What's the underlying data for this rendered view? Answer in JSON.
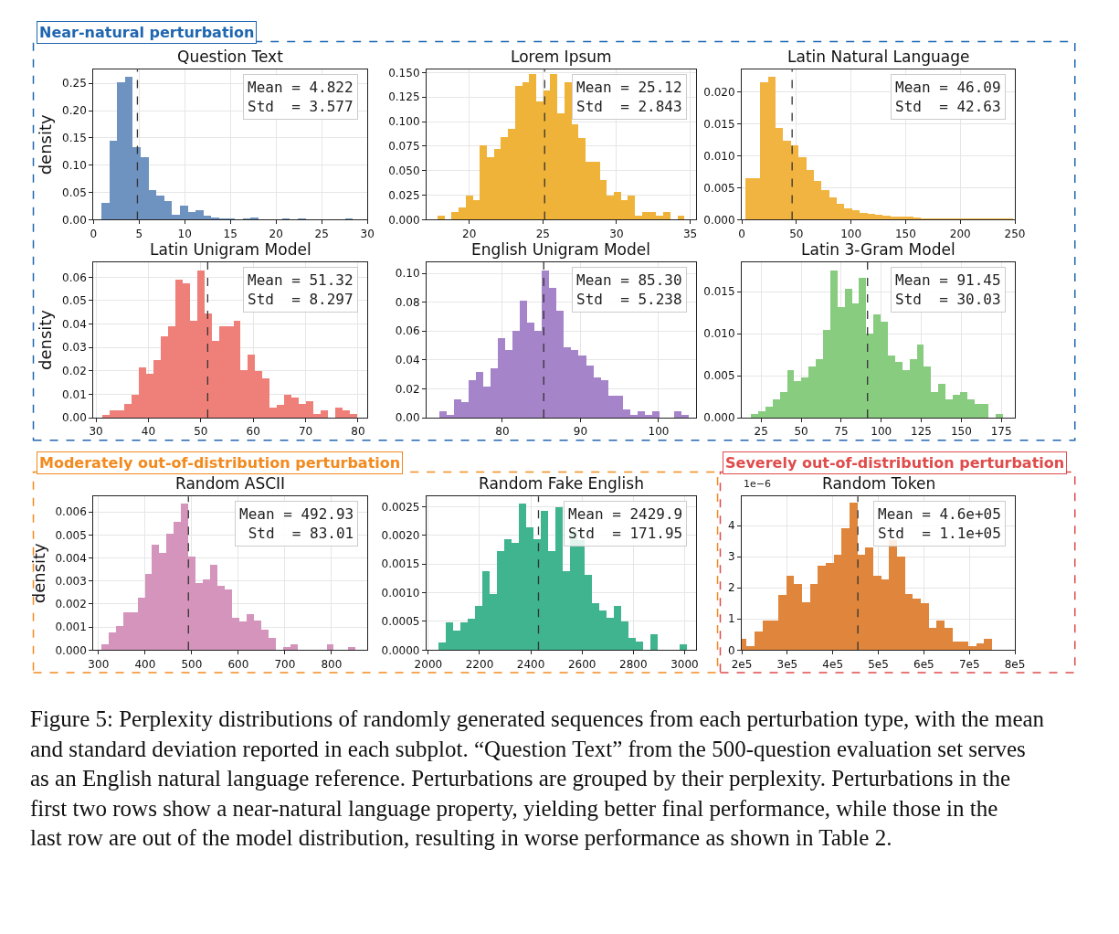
{
  "chart_data": [
    {
      "type": "histogram",
      "title": "Question Text",
      "ylabel": "density",
      "color": "#6f93c0",
      "grid": true,
      "bins": [
        0.9,
        1.76,
        2.62,
        3.48,
        4.34,
        5.2,
        6.06,
        6.92,
        7.78,
        8.64,
        9.5,
        10.36,
        11.22,
        12.08,
        12.94,
        13.8,
        14.66,
        15.52,
        16.38,
        17.24,
        18.1,
        18.96,
        19.82,
        20.68,
        21.54,
        22.4,
        23.26,
        24.12,
        24.98,
        25.84,
        26.7,
        27.56,
        28.42
      ],
      "values": [
        0.03,
        0.144,
        0.252,
        0.261,
        0.133,
        0.114,
        0.054,
        0.044,
        0.034,
        0.009,
        0.026,
        0.014,
        0.017,
        0.007,
        0.004,
        0.002,
        0.002,
        0,
        0.002,
        0.003,
        0,
        0,
        0,
        0.002,
        0,
        0.002,
        0,
        0,
        0,
        0,
        0,
        0.002
      ],
      "xlim": [
        0,
        30
      ],
      "xticks": [
        0,
        5,
        10,
        15,
        20,
        25,
        30
      ],
      "ylim": [
        0,
        0.275
      ],
      "yticks": [
        {
          "value": 0,
          "label": "0.00"
        },
        {
          "value": 0.05,
          "label": "0.05"
        },
        {
          "value": 0.1,
          "label": "0.10"
        },
        {
          "value": 0.15,
          "label": "0.15"
        },
        {
          "value": 0.2,
          "label": "0.20"
        },
        {
          "value": 0.25,
          "label": "0.25"
        }
      ],
      "ref_lines": [
        {
          "axis": "x",
          "value": 4.822,
          "color": "#333333",
          "line_style": "dashed"
        }
      ],
      "annotations": [
        "Mean = 4.822\nStd  = 3.577",
        "Near-natural perturbation"
      ]
    },
    {
      "type": "histogram",
      "title": "Lorem Ipsum",
      "color": "#efb339",
      "grid": true,
      "bins": [
        17.84,
        18.32,
        18.8,
        19.28,
        19.76,
        20.24,
        20.71,
        21.19,
        21.67,
        22.15,
        22.63,
        23.11,
        23.59,
        24.07,
        24.55,
        25.03,
        25.5,
        25.98,
        26.46,
        26.94,
        27.42,
        27.9,
        28.38,
        28.86,
        29.34,
        29.82,
        30.29,
        30.77,
        31.25,
        31.73,
        32.21,
        32.69,
        33.17,
        33.65,
        34.13,
        34.61
      ],
      "values": [
        0.004,
        0,
        0.008,
        0.012,
        0.024,
        0.02,
        0.076,
        0.064,
        0.072,
        0.084,
        0.092,
        0.136,
        0.14,
        0.148,
        0.12,
        0.132,
        0.148,
        0.108,
        0.14,
        0.097,
        0.083,
        0.059,
        0.059,
        0.04,
        0.024,
        0.028,
        0.02,
        0.024,
        0.004,
        0.008,
        0.008,
        0.004,
        0.008,
        0,
        0.004
      ],
      "xlim": [
        17.1,
        35.4
      ],
      "xticks": [
        20,
        25,
        30,
        35
      ],
      "ylim": [
        0,
        0.153
      ],
      "yticks": [
        {
          "value": 0,
          "label": "0.000"
        },
        {
          "value": 0.025,
          "label": "0.025"
        },
        {
          "value": 0.05,
          "label": "0.050"
        },
        {
          "value": 0.075,
          "label": "0.075"
        },
        {
          "value": 0.1,
          "label": "0.100"
        },
        {
          "value": 0.125,
          "label": "0.125"
        },
        {
          "value": 0.15,
          "label": "0.150"
        }
      ],
      "ref_lines": [
        {
          "axis": "x",
          "value": 25.12,
          "color": "#333333",
          "line_style": "dashed"
        }
      ],
      "annotations": [
        "Mean = 25.12\nStd  = 2.843"
      ]
    },
    {
      "type": "histogram",
      "title": "Latin Natural Language",
      "color": "#f2b441",
      "grid": true,
      "bins": [
        3,
        10,
        17,
        24,
        31,
        38,
        45,
        52,
        59,
        66,
        73,
        80,
        87,
        94,
        101,
        108,
        115,
        122,
        129,
        136,
        143,
        150,
        157,
        164,
        171,
        178,
        185,
        192,
        199,
        206,
        213,
        220,
        227,
        234,
        241,
        248
      ],
      "values": [
        0.0064,
        0.0065,
        0.0215,
        0.0223,
        0.0143,
        0.0123,
        0.0116,
        0.0097,
        0.0078,
        0.006,
        0.0046,
        0.0035,
        0.0024,
        0.0017,
        0.0014,
        0.001,
        0.0009,
        0.0007,
        0.0006,
        0.0005,
        0.0004,
        0.0004,
        0.0003,
        0.0002,
        0.0002,
        0.0002,
        0.0001,
        0.0001,
        0.0001,
        0.0001,
        0.0001,
        0.0001,
        0.0001,
        0.0001,
        0.0001
      ],
      "xlim": [
        0,
        250
      ],
      "xticks": [
        0,
        50,
        100,
        150,
        200,
        250
      ],
      "ylim": [
        0,
        0.0235
      ],
      "yticks": [
        {
          "value": 0,
          "label": "0.000"
        },
        {
          "value": 0.005,
          "label": "0.005"
        },
        {
          "value": 0.01,
          "label": "0.010"
        },
        {
          "value": 0.015,
          "label": "0.015"
        },
        {
          "value": 0.02,
          "label": "0.020"
        }
      ],
      "ref_lines": [
        {
          "axis": "x",
          "value": 46.09,
          "color": "#333333",
          "line_style": "dashed"
        }
      ],
      "annotations": [
        "Mean = 46.09\nStd  = 42.63"
      ]
    },
    {
      "type": "histogram",
      "title": "Latin Unigram Model",
      "ylabel": "density",
      "color": "#ef8079",
      "grid": true,
      "bins": [
        31.2,
        32.59,
        33.98,
        35.38,
        36.77,
        38.16,
        39.55,
        40.94,
        42.34,
        43.73,
        45.12,
        46.51,
        47.9,
        49.3,
        50.69,
        52.08,
        53.47,
        54.86,
        56.26,
        57.65,
        59.04,
        60.43,
        61.82,
        63.22,
        64.61,
        66.0,
        67.39,
        68.78,
        70.18,
        71.57,
        72.96,
        74.35,
        75.74,
        77.14,
        78.53,
        79.92
      ],
      "values": [
        0.0013,
        0.003,
        0.003,
        0.006,
        0.01,
        0.0216,
        0.0186,
        0.0246,
        0.0347,
        0.0389,
        0.0588,
        0.0575,
        0.0415,
        0.063,
        0.0444,
        0.0329,
        0.0389,
        0.0389,
        0.0415,
        0.0202,
        0.0271,
        0.0201,
        0.0167,
        0.0042,
        0.0057,
        0.01,
        0.0086,
        0.0058,
        0.0071,
        0.0016,
        0.003,
        0,
        0.0043,
        0.003,
        0.0015
      ],
      "xlim": [
        29.5,
        81.8
      ],
      "xticks": [
        30,
        40,
        50,
        60,
        70,
        80
      ],
      "ylim": [
        0,
        0.0664
      ],
      "yticks": [
        {
          "value": 0,
          "label": "0.00"
        },
        {
          "value": 0.01,
          "label": "0.01"
        },
        {
          "value": 0.02,
          "label": "0.02"
        },
        {
          "value": 0.03,
          "label": "0.03"
        },
        {
          "value": 0.04,
          "label": "0.04"
        },
        {
          "value": 0.05,
          "label": "0.05"
        },
        {
          "value": 0.06,
          "label": "0.06"
        }
      ],
      "ref_lines": [
        {
          "axis": "x",
          "value": 51.32,
          "color": "#333333",
          "line_style": "dashed"
        }
      ],
      "annotations": [
        "Mean = 51.32\nStd  = 8.297"
      ]
    },
    {
      "type": "histogram",
      "title": "English Unigram Model",
      "color": "#a584c9",
      "grid": true,
      "bins": [
        71.9,
        72.84,
        73.78,
        74.72,
        75.66,
        76.6,
        77.54,
        78.48,
        79.42,
        80.36,
        81.3,
        82.24,
        83.18,
        84.12,
        85.06,
        86.0,
        86.94,
        87.88,
        88.82,
        89.76,
        90.7,
        91.64,
        92.58,
        93.52,
        94.46,
        95.4,
        96.34,
        97.28,
        98.22,
        99.16,
        100.1,
        101.04,
        101.98,
        102.92,
        103.86
      ],
      "values": [
        0.0043,
        0.0022,
        0.0128,
        0.0106,
        0.0258,
        0.032,
        0.0215,
        0.034,
        0.0553,
        0.0469,
        0.06,
        0.081,
        0.066,
        0.06,
        0.102,
        0.09,
        0.074,
        0.049,
        0.047,
        0.043,
        0.036,
        0.028,
        0.026,
        0.0152,
        0.0152,
        0.006,
        0.0022,
        0.0043,
        0.0022,
        0.0043,
        0,
        0,
        0.0043,
        0.0022
      ],
      "xlim": [
        70.3,
        104.8
      ],
      "xticks": [
        80,
        90,
        100
      ],
      "ylim": [
        0,
        0.1077
      ],
      "yticks": [
        {
          "value": 0,
          "label": "0.00"
        },
        {
          "value": 0.02,
          "label": "0.02"
        },
        {
          "value": 0.04,
          "label": "0.04"
        },
        {
          "value": 0.06,
          "label": "0.06"
        },
        {
          "value": 0.08,
          "label": "0.08"
        },
        {
          "value": 0.1,
          "label": "0.10"
        }
      ],
      "ref_lines": [
        {
          "axis": "x",
          "value": 85.3,
          "color": "#333333",
          "line_style": "dashed"
        }
      ],
      "annotations": [
        "Mean = 85.30\nStd  = 5.238"
      ]
    },
    {
      "type": "histogram",
      "title": "Latin 3-Gram Model",
      "color": "#88cc7f",
      "grid": true,
      "bins": [
        18.7,
        23.2,
        27.7,
        32.2,
        36.7,
        41.2,
        45.7,
        50.2,
        54.7,
        59.2,
        63.7,
        68.2,
        72.7,
        77.2,
        81.7,
        86.2,
        90.7,
        95.2,
        99.7,
        104.2,
        108.7,
        113.2,
        117.7,
        122.2,
        126.7,
        131.2,
        135.7,
        140.2,
        144.7,
        149.2,
        153.7,
        158.2,
        162.7,
        167.2,
        171.7,
        176.2
      ],
      "values": [
        0.0004,
        0.0008,
        0.0013,
        0.0022,
        0.0031,
        0.0057,
        0.0044,
        0.0048,
        0.0061,
        0.007,
        0.0105,
        0.0175,
        0.0132,
        0.0154,
        0.0136,
        0.0167,
        0.01,
        0.0123,
        0.0114,
        0.0074,
        0.0066,
        0.0057,
        0.007,
        0.0087,
        0.0061,
        0.0031,
        0.004,
        0.0022,
        0.0027,
        0.0031,
        0.0022,
        0.0017,
        0.0017,
        0,
        0.0004
      ],
      "xlim": [
        12.9,
        183.5
      ],
      "xticks": [
        25,
        50,
        75,
        100,
        125,
        150,
        175
      ],
      "ylim": [
        0,
        0.0185
      ],
      "yticks": [
        {
          "value": 0,
          "label": "0.000"
        },
        {
          "value": 0.005,
          "label": "0.005"
        },
        {
          "value": 0.01,
          "label": "0.010"
        },
        {
          "value": 0.015,
          "label": "0.015"
        }
      ],
      "ref_lines": [
        {
          "axis": "x",
          "value": 91.45,
          "color": "#333333",
          "line_style": "dashed"
        }
      ],
      "annotations": [
        "Mean = 91.45\nStd  = 30.03"
      ]
    },
    {
      "type": "histogram",
      "title": "Random ASCII",
      "ylabel": "density",
      "color": "#d494bb",
      "grid": true,
      "bins": [
        306.2,
        321.8,
        337.4,
        353,
        368.6,
        384.2,
        399.8,
        415.4,
        431,
        446.6,
        462.2,
        477.8,
        493.4,
        509,
        524.6,
        540.2,
        555.8,
        571.4,
        587,
        602.6,
        618.2,
        633.8,
        649.4,
        665,
        680.6,
        696.2,
        711.8,
        727.4,
        743,
        758.6,
        774.2,
        789.8,
        805.4,
        821,
        836.6,
        852.2
      ],
      "values": [
        0.00024,
        0.00077,
        0.00102,
        0.00165,
        0.00165,
        0.00228,
        0.0033,
        0.00458,
        0.0042,
        0.00507,
        0.00558,
        0.00636,
        0.00407,
        0.0029,
        0.00305,
        0.00369,
        0.0028,
        0.00264,
        0.00141,
        0.00125,
        0.00155,
        0.00126,
        0.00087,
        0.00051,
        0,
        0.00012,
        0.00024,
        0,
        0,
        0,
        0,
        0.00024,
        0,
        0,
        0.00012
      ],
      "xlim": [
        289,
        877
      ],
      "xticks": [
        300,
        400,
        500,
        600,
        700,
        800
      ],
      "ylim": [
        0,
        0.00668
      ],
      "yticks": [
        {
          "value": 0,
          "label": "0.000"
        },
        {
          "value": 0.001,
          "label": "0.001"
        },
        {
          "value": 0.002,
          "label": "0.002"
        },
        {
          "value": 0.003,
          "label": "0.003"
        },
        {
          "value": 0.004,
          "label": "0.004"
        },
        {
          "value": 0.005,
          "label": "0.005"
        },
        {
          "value": 0.006,
          "label": "0.006"
        }
      ],
      "ref_lines": [
        {
          "axis": "x",
          "value": 492.93,
          "color": "#333333",
          "line_style": "dashed"
        }
      ],
      "annotations": [
        "Mean = 492.93\nStd  = 83.01",
        "Moderately out-of-distribution perturbation"
      ]
    },
    {
      "type": "histogram",
      "title": "Random Fake English",
      "color": "#3fb48f",
      "grid": true,
      "bins": [
        2040,
        2068.5,
        2097,
        2125.5,
        2154,
        2182.5,
        2211,
        2239.5,
        2268,
        2296.5,
        2325,
        2353.5,
        2382,
        2410.5,
        2439,
        2467.5,
        2496,
        2524.5,
        2553,
        2581.5,
        2610,
        2638.5,
        2667,
        2695.5,
        2724,
        2752.5,
        2781,
        2809.5,
        2838,
        2866.5,
        2895,
        2923.5,
        2952,
        2980.5,
        3009
      ],
      "values": [
        0.00013,
        0.00048,
        0.00034,
        0.00048,
        0.00055,
        0.00076,
        0.00138,
        0.00097,
        0.00172,
        0.00193,
        0.00186,
        0.00255,
        0.00214,
        0.00193,
        0.00242,
        0.00172,
        0.00249,
        0.00137,
        0.00207,
        0.00192,
        0.00131,
        0.00082,
        0.00069,
        0.00056,
        0.00076,
        0.00049,
        0.00021,
        0.00014,
        0,
        0.00028,
        0,
        0,
        0,
        0.0001
      ],
      "xlim": [
        1993,
        3045
      ],
      "xticks": [
        2000,
        2200,
        2400,
        2600,
        2800,
        3000
      ],
      "ylim": [
        0,
        0.00268
      ],
      "yticks": [
        {
          "value": 0,
          "label": "0.0000"
        },
        {
          "value": 0.0005,
          "label": "0.0005"
        },
        {
          "value": 0.001,
          "label": "0.0010"
        },
        {
          "value": 0.0015,
          "label": "0.0015"
        },
        {
          "value": 0.002,
          "label": "0.0020"
        },
        {
          "value": 0.0025,
          "label": "0.0025"
        }
      ],
      "ref_lines": [
        {
          "axis": "x",
          "value": 2429.9,
          "color": "#333333",
          "line_style": "dashed"
        }
      ],
      "annotations": [
        "Mean = 2429.9\nStd  = 171.95"
      ]
    },
    {
      "type": "histogram",
      "title": "Random Token",
      "color": "#e0863c",
      "grid": true,
      "bins": [
        200000,
        210600,
        228000,
        245400,
        262800,
        280200,
        297600,
        315000,
        332400,
        349800,
        367200,
        384600,
        402000,
        419400,
        436800,
        454200,
        471600,
        489000,
        506400,
        523800,
        541200,
        558600,
        576000,
        593400,
        610800,
        628200,
        645600,
        663000,
        680400,
        697800,
        715200,
        732600,
        750000
      ],
      "values": [
        0.37,
        0.12,
        0.59,
        0.94,
        0.94,
        1.78,
        2.37,
        2.12,
        1.53,
        2.13,
        2.7,
        2.81,
        3.07,
        3.9,
        4.72,
        3.06,
        3.29,
        2.39,
        2.26,
        3.53,
        3.0,
        1.81,
        1.64,
        1.51,
        0.7,
        0.94,
        0.7,
        0.26,
        0.26,
        0.12,
        0.2,
        0.37
      ],
      "xlim": [
        200000,
        800000
      ],
      "xticks": [
        {
          "value": 200000,
          "label": "2e5"
        },
        {
          "value": 300000,
          "label": "3e5"
        },
        {
          "value": 400000,
          "label": "4e5"
        },
        {
          "value": 500000,
          "label": "5e5"
        },
        {
          "value": 600000,
          "label": "6e5"
        },
        {
          "value": 700000,
          "label": "7e5"
        },
        {
          "value": 800000,
          "label": "8e5"
        }
      ],
      "ylim": [
        0,
        4.94
      ],
      "yticks": [
        0,
        1,
        2,
        3,
        4
      ],
      "ref_lines": [
        {
          "axis": "x",
          "value": 455000,
          "color": "#333333",
          "line_style": "dashed"
        }
      ],
      "annotations": [
        "Mean = 4.6e+05\nStd  = 1.1e+05",
        "1e−6",
        "Severely out-of-distribution perturbation",
        "Figure 5: Perplexity distributions of randomly generated sequences from each perturbation type, with the mean and standard deviation reported in each subplot. “Question Text” from the 500-question evaluation set serves as an English natural language reference. Perturbations are grouped by their perplexity. Perturbations in the first two rows show a near-natural language property, yielding better final performance, while those in the last row are out of the model distribution, resulting in worse performance as shown in Table 2."
      ]
    }
  ]
}
